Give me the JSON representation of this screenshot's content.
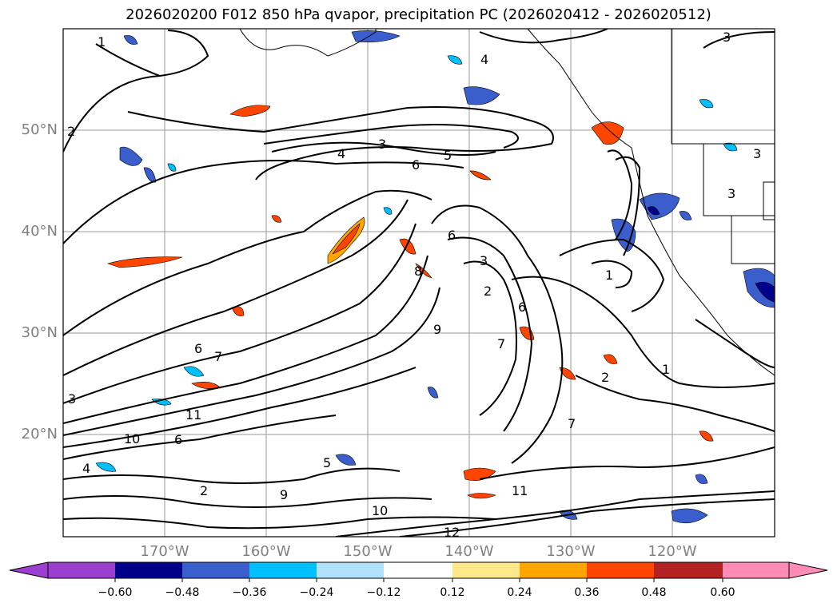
{
  "title": "2026020200 F012 850 hPa qvapor, precipitation PC (2026020412 - 2026020512)",
  "map": {
    "lat_labels": [
      "50°N",
      "40°N",
      "30°N",
      "20°N"
    ],
    "lon_labels": [
      "170°W",
      "160°W",
      "150°W",
      "140°W",
      "130°W",
      "120°W"
    ],
    "contour_labels": [
      "1",
      "2",
      "3",
      "4",
      "3",
      "5",
      "6",
      "4",
      "6",
      "7",
      "6",
      "7",
      "8",
      "9",
      "11",
      "10",
      "6",
      "4",
      "3",
      "2",
      "9",
      "10",
      "12",
      "11",
      "3",
      "2",
      "1",
      "1",
      "2",
      "3",
      "6",
      "7",
      "3",
      "5"
    ]
  },
  "colorbar": {
    "ticks": [
      "−0.60",
      "−0.48",
      "−0.36",
      "−0.24",
      "−0.12",
      "0.12",
      "0.24",
      "0.36",
      "0.48",
      "0.60"
    ],
    "colors": [
      "#9c3fd1",
      "#00008b",
      "#3a5fcd",
      "#00bfff",
      "#b0e0fa",
      "#ffffff",
      "#fde98a",
      "#ffa500",
      "#ff4500",
      "#b22222",
      "#ff8cb4",
      "#ff8cb4"
    ]
  }
}
